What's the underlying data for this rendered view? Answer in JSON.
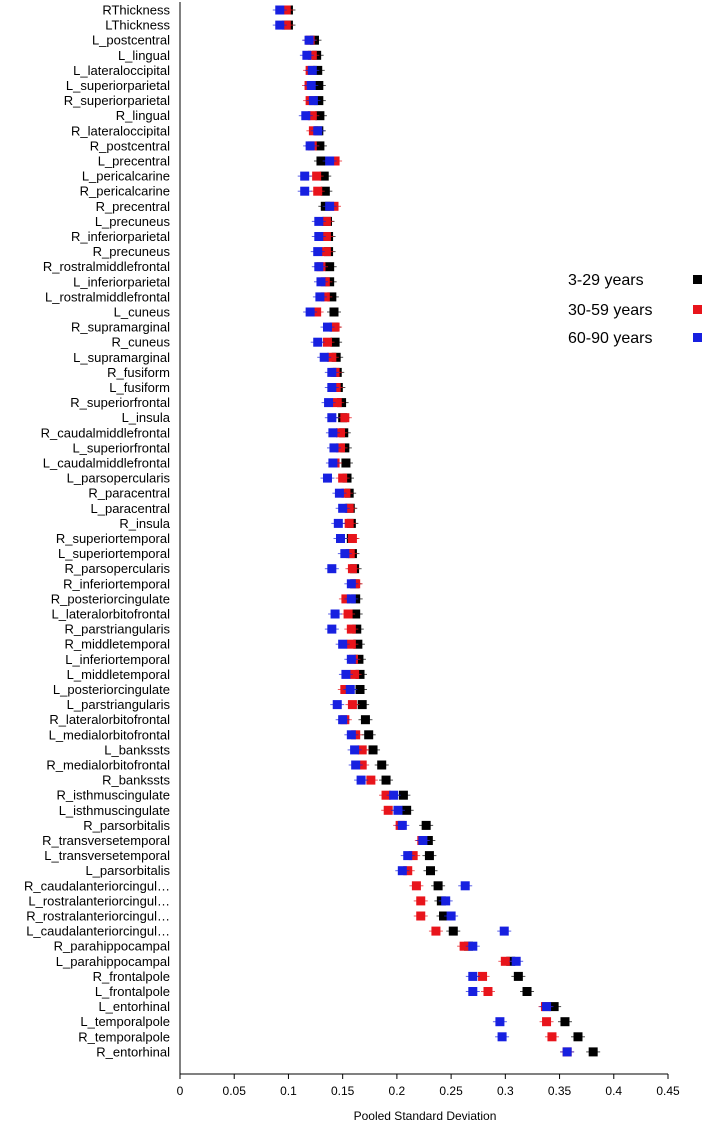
{
  "chart_data": {
    "type": "scatter",
    "xlabel": "Pooled Standard Deviation",
    "xlim": [
      0,
      0.45
    ],
    "xticks": [
      0,
      0.05,
      0.1,
      0.15,
      0.2,
      0.25,
      0.3,
      0.35,
      0.4,
      0.45
    ],
    "xtick_labels": [
      "0",
      "0.05",
      "0.1",
      "0.15",
      "0.2",
      "0.25",
      "0.3",
      "0.35",
      "0.4",
      "0.45"
    ],
    "legend_position": "right",
    "categories": [
      "RThickness",
      "LThickness",
      "L_postcentral",
      "L_lingual",
      "L_lateraloccipital",
      "L_superiorparietal",
      "R_superiorparietal",
      "R_lingual",
      "R_lateraloccipital",
      "R_postcentral",
      "L_precentral",
      "L_pericalcarine",
      "R_pericalcarine",
      "R_precentral",
      "L_precuneus",
      "R_inferiorparietal",
      "R_precuneus",
      "R_rostralmiddlefrontal",
      "L_inferiorparietal",
      "L_rostralmiddlefrontal",
      "L_cuneus",
      "R_supramarginal",
      "R_cuneus",
      "L_supramarginal",
      "R_fusiform",
      "L_fusiform",
      "R_superiorfrontal",
      "L_insula",
      "R_caudalmiddlefrontal",
      "L_superiorfrontal",
      "L_caudalmiddlefrontal",
      "L_parsopercularis",
      "R_paracentral",
      "L_paracentral",
      "R_insula",
      "R_superiortemporal",
      "L_superiortemporal",
      "R_parsopercularis",
      "R_inferiortemporal",
      "R_posteriorcingulate",
      "L_lateralorbitofrontal",
      "R_parstriangularis",
      "R_middletemporal",
      "L_inferiortemporal",
      "L_middletemporal",
      "L_posteriorcingulate",
      "L_parstriangularis",
      "R_lateralorbitofrontal",
      "L_medialorbitofrontal",
      "L_bankssts",
      "R_medialorbitofrontal",
      "R_bankssts",
      "R_isthmuscingulate",
      "L_isthmuscingulate",
      "R_parsorbitalis",
      "R_transversetemporal",
      "L_transversetemporal",
      "L_parsorbitalis",
      "R_caudalanteriorcingul…",
      "L_rostralanteriorcingul…",
      "R_rostralanteriorcingul…",
      "L_caudalanteriorcingul…",
      "R_parahippocampal",
      "L_parahippocampal",
      "R_frontalpole",
      "L_frontalpole",
      "L_entorhinal",
      "L_temporalpole",
      "R_temporalpole",
      "R_entorhinal"
    ],
    "series": [
      {
        "name": "3-29 years",
        "color": "#000000",
        "values": [
          0.1,
          0.1,
          0.124,
          0.126,
          0.127,
          0.128,
          0.128,
          0.129,
          0.128,
          0.129,
          0.13,
          0.133,
          0.134,
          0.134,
          0.136,
          0.137,
          0.137,
          0.138,
          0.138,
          0.14,
          0.142,
          0.142,
          0.143,
          0.144,
          0.145,
          0.146,
          0.149,
          0.15,
          0.151,
          0.152,
          0.153,
          0.154,
          0.156,
          0.157,
          0.158,
          0.158,
          0.159,
          0.161,
          0.161,
          0.162,
          0.162,
          0.163,
          0.164,
          0.165,
          0.166,
          0.166,
          0.168,
          0.171,
          0.174,
          0.178,
          0.186,
          0.19,
          0.206,
          0.209,
          0.227,
          0.229,
          0.23,
          0.231,
          0.238,
          0.241,
          0.243,
          0.252,
          0.266,
          0.305,
          0.312,
          0.32,
          0.345,
          0.355,
          0.367,
          0.381
        ]
      },
      {
        "name": "30-59 years",
        "color": "#e8141b",
        "values": [
          0.098,
          0.098,
          0.12,
          0.122,
          0.12,
          0.119,
          0.12,
          0.122,
          0.123,
          0.122,
          0.143,
          0.126,
          0.127,
          0.142,
          0.135,
          0.135,
          0.135,
          0.13,
          0.134,
          0.134,
          0.126,
          0.143,
          0.136,
          0.14,
          0.143,
          0.144,
          0.145,
          0.152,
          0.148,
          0.148,
          0.143,
          0.15,
          0.153,
          0.156,
          0.156,
          0.159,
          0.157,
          0.159,
          0.162,
          0.153,
          0.155,
          0.158,
          0.158,
          0.16,
          0.161,
          0.152,
          0.159,
          0.152,
          0.162,
          0.168,
          0.168,
          0.176,
          0.19,
          0.192,
          0.203,
          0.223,
          0.215,
          0.21,
          0.218,
          0.222,
          0.222,
          0.236,
          0.262,
          0.3,
          0.279,
          0.284,
          0.337,
          0.338,
          0.343,
          0.357
        ]
      },
      {
        "name": "60-90 years",
        "color": "#1720e0",
        "values": [
          0.092,
          0.092,
          0.119,
          0.117,
          0.122,
          0.121,
          0.123,
          0.116,
          0.127,
          0.12,
          0.138,
          0.115,
          0.115,
          0.138,
          0.128,
          0.128,
          0.127,
          0.128,
          0.13,
          0.129,
          0.12,
          0.136,
          0.127,
          0.133,
          0.14,
          0.14,
          0.137,
          0.14,
          0.141,
          0.142,
          0.141,
          0.136,
          0.147,
          0.15,
          0.146,
          0.148,
          0.152,
          0.14,
          0.158,
          0.158,
          0.143,
          0.14,
          0.15,
          0.158,
          0.153,
          0.157,
          0.145,
          0.15,
          0.158,
          0.161,
          0.162,
          0.167,
          0.197,
          0.201,
          0.205,
          0.224,
          0.21,
          0.205,
          0.263,
          0.245,
          0.25,
          0.299,
          0.27,
          0.31,
          0.27,
          0.27,
          0.338,
          0.295,
          0.297,
          0.357
        ]
      }
    ]
  }
}
